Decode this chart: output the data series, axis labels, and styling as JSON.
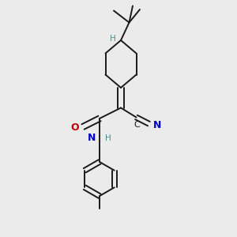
{
  "bg_color": "#ebebeb",
  "bond_color": "#1a1a1a",
  "bond_width": 1.4,
  "N_color": "#0000cc",
  "O_color": "#cc0000",
  "C_color": "#4a8a8a",
  "figsize": [
    3.0,
    3.0
  ],
  "dpi": 100,
  "xlim": [
    0,
    10
  ],
  "ylim": [
    0,
    10
  ]
}
